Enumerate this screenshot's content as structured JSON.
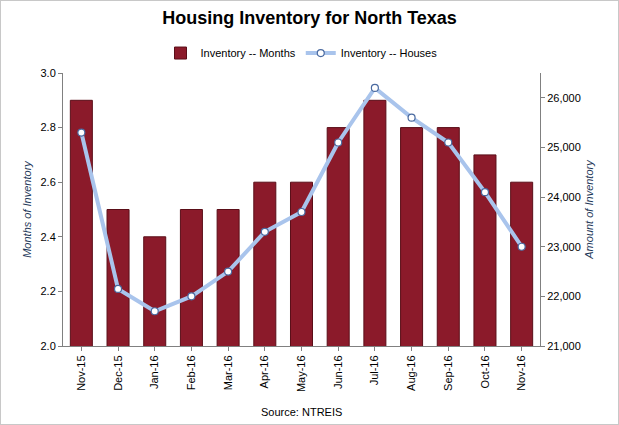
{
  "chart_data": {
    "type": "bar",
    "title": "Housing Inventory for North Texas",
    "annotations": [
      "Source: NTREIS"
    ],
    "y_label": "Months of Inventory",
    "y2_label": "Amount of Inventory",
    "categories": [
      "Nov-15",
      "Dec-15",
      "Jan-16",
      "Feb-16",
      "Mar-16",
      "Apr-16",
      "May-16",
      "Jun-16",
      "Jul-16",
      "Aug-16",
      "Sep-16",
      "Oct-16",
      "Nov-16"
    ],
    "series": [
      {
        "name": "Inventory -- Months",
        "type": "bar",
        "color": "#8b1a2a",
        "values": [
          2.9,
          2.5,
          2.4,
          2.5,
          2.5,
          2.6,
          2.6,
          2.8,
          2.9,
          2.8,
          2.8,
          2.7,
          2.6
        ]
      },
      {
        "name": "Inventory -- Houses",
        "type": "line",
        "axis": "y2",
        "color": "#a9c4ec",
        "marker": "circle",
        "values": [
          25300,
          22150,
          21700,
          22000,
          22500,
          23300,
          23700,
          25100,
          26200,
          25600,
          25100,
          24100,
          23000
        ]
      }
    ],
    "ylim": [
      2.0,
      3.0
    ],
    "yticks": [
      {
        "value": 2.0,
        "label": "2.0"
      },
      2.2,
      2.4,
      2.6,
      2.8,
      {
        "value": 3.0,
        "label": "3.0"
      }
    ],
    "y2lim": [
      21000,
      26500
    ],
    "y2ticks": [
      {
        "value": 21000,
        "label": "21,000"
      },
      {
        "value": 22000,
        "label": "22,000"
      },
      {
        "value": 23000,
        "label": "23,000"
      },
      {
        "value": 24000,
        "label": "24,000"
      },
      {
        "value": 25000,
        "label": "25,000"
      },
      {
        "value": 26000,
        "label": "26,000"
      }
    ],
    "grid": false,
    "legend": "top"
  }
}
